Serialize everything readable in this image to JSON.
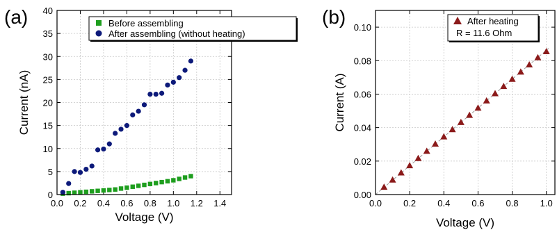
{
  "chart_data": [
    {
      "panel": "(a)",
      "type": "scatter",
      "xlabel": "Voltage (V)",
      "ylabel": "Current (nA)",
      "xlim": [
        0.0,
        1.5
      ],
      "ylim": [
        0,
        40
      ],
      "xticks": [
        "0.0",
        "0.2",
        "0.4",
        "0.6",
        "0.8",
        "1.0",
        "1.2",
        "1.4"
      ],
      "yticks": [
        "0",
        "5",
        "10",
        "15",
        "20",
        "25",
        "30",
        "35",
        "40"
      ],
      "grid": true,
      "legend_position": "top-right",
      "series": [
        {
          "name": "Before assembling",
          "marker": "square",
          "color": "#1e9e1e",
          "x": [
            0.05,
            0.1,
            0.15,
            0.2,
            0.25,
            0.3,
            0.35,
            0.4,
            0.45,
            0.5,
            0.55,
            0.6,
            0.65,
            0.7,
            0.75,
            0.8,
            0.85,
            0.9,
            0.95,
            1.0,
            1.05,
            1.1,
            1.15
          ],
          "y": [
            0.2,
            0.3,
            0.4,
            0.5,
            0.6,
            0.7,
            0.8,
            0.9,
            1.0,
            1.1,
            1.3,
            1.5,
            1.7,
            1.9,
            2.1,
            2.3,
            2.5,
            2.7,
            2.9,
            3.1,
            3.4,
            3.7,
            4.0
          ]
        },
        {
          "name": "After assembling (without heating)",
          "marker": "circle",
          "color": "#0d1a7a",
          "x": [
            0.05,
            0.1,
            0.15,
            0.2,
            0.25,
            0.3,
            0.35,
            0.4,
            0.45,
            0.5,
            0.55,
            0.6,
            0.65,
            0.7,
            0.75,
            0.8,
            0.85,
            0.9,
            0.95,
            1.0,
            1.05,
            1.1,
            1.15
          ],
          "y": [
            0.5,
            2.4,
            5.0,
            4.8,
            5.5,
            6.2,
            9.7,
            9.9,
            11.0,
            13.3,
            14.2,
            15.0,
            17.3,
            18.1,
            19.5,
            21.8,
            21.8,
            22.0,
            23.8,
            24.4,
            25.4,
            27.0,
            29.0
          ]
        }
      ]
    },
    {
      "panel": "(b)",
      "type": "scatter",
      "xlabel": "Voltage (V)",
      "ylabel": "Current (A)",
      "xlim": [
        0.0,
        1.05
      ],
      "ylim": [
        0.0,
        0.11
      ],
      "xticks": [
        "0.0",
        "0.2",
        "0.4",
        "0.6",
        "0.8",
        "1.0"
      ],
      "yticks": [
        "0.00",
        "0.02",
        "0.04",
        "0.06",
        "0.08",
        "0.10"
      ],
      "grid": true,
      "legend_position": "top-right",
      "annotation": "R = 11.6 Ohm",
      "fit_line": {
        "slope": 0.0862,
        "style": "dashed",
        "color": "#999999"
      },
      "series": [
        {
          "name": "After heating",
          "marker": "triangle",
          "color": "#8b1a1a",
          "x": [
            0.05,
            0.1,
            0.15,
            0.2,
            0.25,
            0.3,
            0.35,
            0.4,
            0.45,
            0.5,
            0.55,
            0.6,
            0.65,
            0.7,
            0.75,
            0.8,
            0.85,
            0.9,
            0.95,
            1.0
          ],
          "y": [
            0.0045,
            0.0088,
            0.0131,
            0.0174,
            0.0217,
            0.026,
            0.0303,
            0.0346,
            0.0389,
            0.0432,
            0.0475,
            0.0518,
            0.0561,
            0.0604,
            0.0647,
            0.069,
            0.0733,
            0.0776,
            0.0819,
            0.0855
          ]
        }
      ]
    }
  ]
}
